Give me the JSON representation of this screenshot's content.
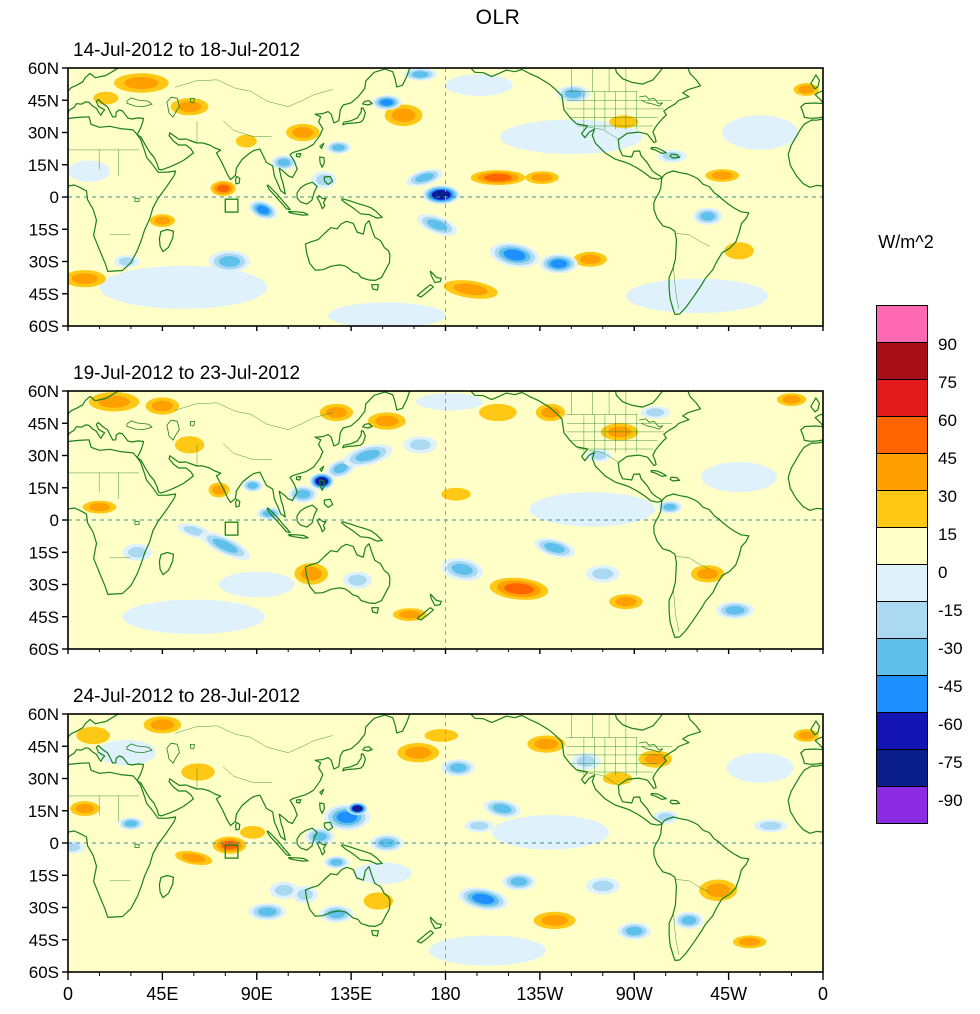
{
  "title": "OLR",
  "colorbar": {
    "label": "W/m^2",
    "tick_labels": [
      "90",
      "75",
      "60",
      "45",
      "30",
      "15",
      "0",
      "-15",
      "-30",
      "-45",
      "-60",
      "-75",
      "-90"
    ],
    "colors": [
      "#FF69B4",
      "#A50F15",
      "#E31A1C",
      "#FF6400",
      "#FFA000",
      "#FFC814",
      "#FFFFC8",
      "#DFF1FB",
      "#ABD9F2",
      "#5FC0EB",
      "#1E90FF",
      "#1414B4",
      "#0A1E8C",
      "#8B2BE2"
    ],
    "coast_color": "#1b7f1b"
  },
  "chart_data": {
    "type": "heatmap",
    "title": "OLR",
    "units": "W/m^2",
    "projection": "equirectangular, longitudes 0E eastward to 360 (map centered on 180)",
    "lon_range": [
      0,
      360
    ],
    "lat_range": [
      -60,
      60
    ],
    "contour_interval": 15,
    "levels": [
      -90,
      -75,
      -60,
      -45,
      -30,
      -15,
      0,
      15,
      30,
      45,
      60,
      75,
      90
    ],
    "x_tick_labels": [
      "0",
      "45E",
      "90E",
      "135E",
      "180",
      "135W",
      "90W",
      "45W",
      "0"
    ],
    "y_tick_labels": [
      "60N",
      "45N",
      "30N",
      "15N",
      "0",
      "15S",
      "30S",
      "45S",
      "60S"
    ],
    "reference_lines": {
      "equator_lat": 0,
      "dateline_lon": 180
    },
    "region_box": {
      "lon_min": 75,
      "lon_max": 81,
      "lat_min": -7,
      "lat_max": -1
    },
    "background_anomaly_band": "0 to 15",
    "features_format": "[lon_deg_0_360, lat_deg, half_width_deg, half_height_deg, peak_anomaly_Wm2, rotation_deg]",
    "panels": [
      {
        "label": "14-Jul-2012 to 18-Jul-2012",
        "features": [
          [
            55,
            -42,
            40,
            10,
            -7,
            0
          ],
          [
            240,
            28,
            34,
            8,
            -7,
            0
          ],
          [
            300,
            -46,
            34,
            8,
            -7,
            0
          ],
          [
            152,
            -55,
            28,
            6,
            -7,
            0
          ],
          [
            10,
            12,
            10,
            5,
            -7,
            0
          ],
          [
            330,
            30,
            18,
            8,
            -7,
            0
          ],
          [
            196,
            52,
            16,
            5,
            -7,
            0
          ],
          [
            28,
            -30,
            6,
            3,
            -15,
            0
          ],
          [
            122,
            8,
            6,
            4,
            -15,
            0
          ],
          [
            288,
            19,
            7,
            3,
            -15,
            0
          ],
          [
            265,
            35,
            7,
            3,
            15,
            0
          ],
          [
            320,
            -25,
            7,
            4,
            15,
            0
          ],
          [
            85,
            26,
            5,
            3,
            15,
            0
          ],
          [
            18,
            46,
            6,
            3,
            15,
            0
          ],
          [
            35,
            53,
            13,
            4.5,
            30,
            0
          ],
          [
            58,
            42,
            9,
            4,
            30,
            0
          ],
          [
            112,
            30,
            8,
            4,
            30,
            0
          ],
          [
            160,
            38,
            9,
            5,
            30,
            0
          ],
          [
            226,
            9,
            8,
            3,
            30,
            0
          ],
          [
            192,
            -43,
            13,
            4,
            30,
            8
          ],
          [
            45,
            -11,
            6,
            3,
            30,
            0
          ],
          [
            8,
            -38,
            10,
            4,
            30,
            0
          ],
          [
            312,
            10,
            8,
            3,
            30,
            0
          ],
          [
            352,
            50,
            6,
            3,
            30,
            0
          ],
          [
            249,
            -29,
            8,
            3.5,
            30,
            0
          ],
          [
            103,
            16,
            6,
            3.5,
            -30,
            0
          ],
          [
            129,
            23,
            6,
            3,
            -30,
            0
          ],
          [
            170,
            9,
            9,
            3.5,
            -30,
            -15
          ],
          [
            176,
            -13,
            10,
            4,
            -30,
            20
          ],
          [
            77,
            -30,
            10,
            5,
            -30,
            0
          ],
          [
            241,
            48,
            8,
            4,
            -30,
            0
          ],
          [
            305,
            -9,
            7,
            4,
            -30,
            0
          ],
          [
            168,
            57,
            8,
            3,
            -30,
            0
          ],
          [
            93,
            -6,
            7,
            4,
            -45,
            20
          ],
          [
            152,
            44,
            7,
            3.5,
            -45,
            0
          ],
          [
            213,
            -27,
            12,
            5.5,
            -45,
            10
          ],
          [
            234,
            -31,
            9,
            4.5,
            -45,
            0
          ],
          [
            205,
            9,
            13,
            3.5,
            45,
            0
          ],
          [
            74,
            4,
            6,
            3.5,
            45,
            0
          ],
          [
            178,
            1,
            9,
            4.5,
            -75,
            0
          ]
        ]
      },
      {
        "label": "19-Jul-2012 to 23-Jul-2012",
        "features": [
          [
            250,
            5,
            30,
            8,
            -7,
            0
          ],
          [
            60,
            -45,
            34,
            8,
            -7,
            0
          ],
          [
            320,
            20,
            18,
            7,
            -7,
            0
          ],
          [
            90,
            -30,
            18,
            6,
            -7,
            0
          ],
          [
            182,
            55,
            16,
            4,
            -7,
            0
          ],
          [
            168,
            35,
            8,
            4,
            -15,
            0
          ],
          [
            253,
            30,
            6,
            3,
            -15,
            0
          ],
          [
            280,
            50,
            7,
            3,
            -15,
            0
          ],
          [
            255,
            -25,
            8,
            4,
            -15,
            0
          ],
          [
            33,
            -15,
            7,
            4,
            -15,
            0
          ],
          [
            138,
            -28,
            7,
            4,
            -15,
            0
          ],
          [
            60,
            -5,
            8,
            3,
            -15,
            15
          ],
          [
            185,
            12,
            7,
            3,
            15,
            0
          ],
          [
            205,
            50,
            9,
            4,
            15,
            0
          ],
          [
            58,
            35,
            7,
            4,
            15,
            0
          ],
          [
            22,
            55,
            12,
            4.5,
            30,
            0
          ],
          [
            45,
            53,
            8,
            4,
            30,
            0
          ],
          [
            72,
            14,
            5,
            3.5,
            30,
            0
          ],
          [
            152,
            46,
            9,
            4,
            30,
            0
          ],
          [
            128,
            50,
            8,
            4,
            30,
            0
          ],
          [
            230,
            50,
            7,
            4,
            30,
            0
          ],
          [
            263,
            41,
            9,
            4,
            30,
            0
          ],
          [
            266,
            -38,
            8,
            3.5,
            30,
            0
          ],
          [
            305,
            -25,
            8,
            4,
            30,
            0
          ],
          [
            15,
            6,
            8,
            3,
            30,
            0
          ],
          [
            345,
            56,
            7,
            3,
            30,
            0
          ],
          [
            116,
            -25,
            8,
            5,
            30,
            0
          ],
          [
            163,
            -44,
            8,
            3,
            30,
            0
          ],
          [
            88,
            16,
            5,
            3,
            -30,
            0
          ],
          [
            75,
            -12,
            13,
            4,
            -30,
            25
          ],
          [
            112,
            12,
            7,
            4,
            -30,
            0
          ],
          [
            130,
            24,
            7,
            4,
            -30,
            -20
          ],
          [
            143,
            30,
            12,
            4.5,
            -30,
            -15
          ],
          [
            188,
            -23,
            10,
            5,
            -30,
            10
          ],
          [
            232,
            -13,
            10,
            4,
            -30,
            15
          ],
          [
            287,
            6,
            6,
            3,
            -30,
            0
          ],
          [
            318,
            -42,
            9,
            4,
            -30,
            0
          ],
          [
            96,
            3,
            6,
            3,
            -30,
            0
          ],
          [
            215,
            -32,
            14,
            5,
            45,
            5
          ],
          [
            121,
            18,
            6,
            4,
            -75,
            0
          ]
        ]
      },
      {
        "label": "24-Jul-2012 to 28-Jul-2012",
        "features": [
          [
            230,
            5,
            28,
            8,
            -7,
            0
          ],
          [
            200,
            -50,
            28,
            7,
            -7,
            0
          ],
          [
            330,
            35,
            16,
            7,
            -7,
            0
          ],
          [
            28,
            42,
            14,
            6,
            -7,
            0
          ],
          [
            150,
            -14,
            14,
            5,
            -7,
            0
          ],
          [
            2,
            -2,
            6,
            3,
            -15,
            0
          ],
          [
            103,
            -22,
            7,
            4,
            -15,
            0
          ],
          [
            113,
            -24,
            6,
            4,
            -15,
            0
          ],
          [
            247,
            38,
            7,
            4,
            -15,
            0
          ],
          [
            255,
            -20,
            8,
            4,
            -15,
            0
          ],
          [
            285,
            12,
            6,
            3,
            -15,
            0
          ],
          [
            335,
            8,
            8,
            3,
            -15,
            0
          ],
          [
            196,
            8,
            7,
            3,
            -15,
            0
          ],
          [
            12,
            50,
            8,
            4,
            15,
            0
          ],
          [
            62,
            33,
            8,
            4,
            15,
            0
          ],
          [
            88,
            5,
            6,
            3,
            15,
            0
          ],
          [
            178,
            50,
            8,
            3,
            15,
            0
          ],
          [
            262,
            30,
            7,
            3,
            15,
            0
          ],
          [
            148,
            -27,
            7,
            4,
            15,
            0
          ],
          [
            45,
            55,
            9,
            4,
            30,
            0
          ],
          [
            352,
            50,
            6,
            3,
            30,
            0
          ],
          [
            8,
            16,
            7,
            3.5,
            30,
            0
          ],
          [
            60,
            -7,
            9,
            3,
            30,
            10
          ],
          [
            167,
            42,
            10,
            4.5,
            30,
            0
          ],
          [
            228,
            46,
            9,
            4,
            30,
            0
          ],
          [
            280,
            39,
            8,
            4,
            30,
            0
          ],
          [
            232,
            -36,
            10,
            4,
            30,
            0
          ],
          [
            310,
            -22,
            9,
            5,
            30,
            0
          ],
          [
            325,
            -46,
            8,
            3,
            30,
            0
          ],
          [
            30,
            9,
            6,
            3,
            -30,
            0
          ],
          [
            120,
            3,
            7,
            4,
            -30,
            0
          ],
          [
            152,
            0,
            8,
            4,
            -30,
            0
          ],
          [
            128,
            -9,
            6,
            3,
            -30,
            0
          ],
          [
            128,
            -33,
            8,
            4,
            -30,
            0
          ],
          [
            95,
            -32,
            9,
            4,
            -30,
            0
          ],
          [
            186,
            35,
            8,
            4,
            -30,
            0
          ],
          [
            207,
            16,
            9,
            4,
            -30,
            10
          ],
          [
            215,
            -18,
            8,
            4,
            -30,
            0
          ],
          [
            270,
            -41,
            8,
            4,
            -30,
            0
          ],
          [
            296,
            -36,
            7,
            4,
            -30,
            0
          ],
          [
            133,
            12,
            11,
            6,
            -45,
            0
          ],
          [
            198,
            -26,
            12,
            5,
            -45,
            10
          ],
          [
            77,
            -1,
            8,
            4,
            45,
            0
          ],
          [
            138,
            16,
            5,
            3,
            -75,
            0
          ]
        ]
      }
    ]
  }
}
